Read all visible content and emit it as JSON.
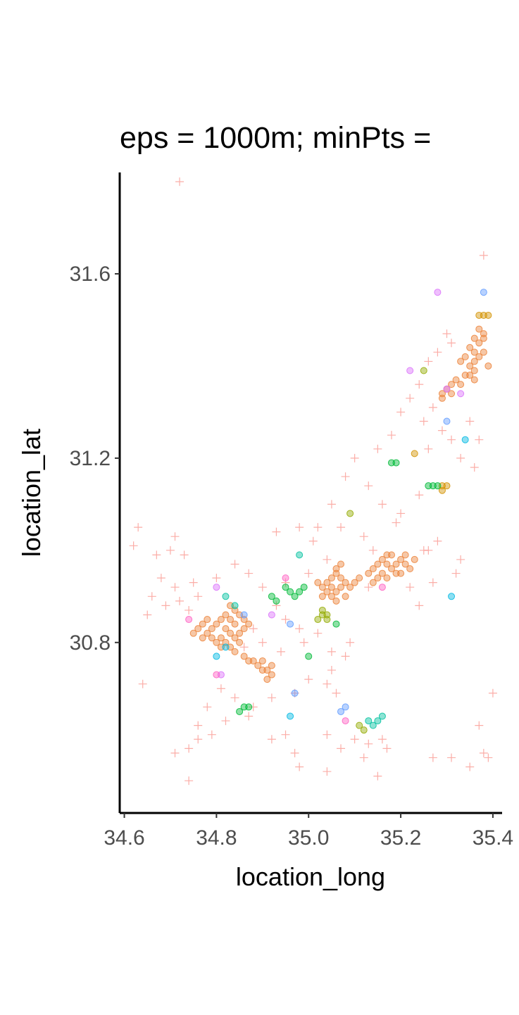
{
  "chart_data": {
    "type": "scatter",
    "title": "eps = 1000m; minPts = ",
    "xlabel": "location_long",
    "ylabel": "location_lat",
    "xlim": [
      34.59,
      35.42
    ],
    "ylim": [
      30.43,
      31.82
    ],
    "xticks": [
      34.6,
      34.8,
      35.0,
      35.2,
      35.4
    ],
    "xtick_labels": [
      "34.6",
      "34.8",
      "35.0",
      "35.2",
      "35.4"
    ],
    "yticks": [
      30.8,
      31.2,
      31.6
    ],
    "ytick_labels": [
      "30.8",
      "31.2",
      "31.6"
    ],
    "grid": false,
    "legend": "none",
    "noise": {
      "color": "#F8766D",
      "marker": "plus",
      "points": [
        [
          34.72,
          31.8
        ],
        [
          35.38,
          31.64
        ],
        [
          35.3,
          31.47
        ],
        [
          35.28,
          31.43
        ],
        [
          35.31,
          31.45
        ],
        [
          35.26,
          31.41
        ],
        [
          35.24,
          31.36
        ],
        [
          35.22,
          31.33
        ],
        [
          35.27,
          31.31
        ],
        [
          35.25,
          31.28
        ],
        [
          35.29,
          31.26
        ],
        [
          35.31,
          31.24
        ],
        [
          35.26,
          31.22
        ],
        [
          35.33,
          31.2
        ],
        [
          35.35,
          31.28
        ],
        [
          35.37,
          31.24
        ],
        [
          35.2,
          31.3
        ],
        [
          35.18,
          31.25
        ],
        [
          35.15,
          31.22
        ],
        [
          35.1,
          31.2
        ],
        [
          35.08,
          31.16
        ],
        [
          35.13,
          31.14
        ],
        [
          35.05,
          31.1
        ],
        [
          35.16,
          31.1
        ],
        [
          35.2,
          31.08
        ],
        [
          35.24,
          31.12
        ],
        [
          35.19,
          31.06
        ],
        [
          35.07,
          31.05
        ],
        [
          35.02,
          31.05
        ],
        [
          34.98,
          31.05
        ],
        [
          34.93,
          31.04
        ],
        [
          35.01,
          31.02
        ],
        [
          35.12,
          31.03
        ],
        [
          35.14,
          31.0
        ],
        [
          35.25,
          31.0
        ],
        [
          35.28,
          31.02
        ],
        [
          35.33,
          30.98
        ],
        [
          35.32,
          30.95
        ],
        [
          35.27,
          30.93
        ],
        [
          35.22,
          30.92
        ],
        [
          35.13,
          30.92
        ],
        [
          35.04,
          30.98
        ],
        [
          35.0,
          30.95
        ],
        [
          34.95,
          30.93
        ],
        [
          34.9,
          30.92
        ],
        [
          34.87,
          30.95
        ],
        [
          34.84,
          30.97
        ],
        [
          34.8,
          30.94
        ],
        [
          34.75,
          30.93
        ],
        [
          34.71,
          30.92
        ],
        [
          34.7,
          31.0
        ],
        [
          34.73,
          30.99
        ],
        [
          34.67,
          30.99
        ],
        [
          34.71,
          31.03
        ],
        [
          34.63,
          31.05
        ],
        [
          34.62,
          31.01
        ],
        [
          34.68,
          30.94
        ],
        [
          34.66,
          30.9
        ],
        [
          34.69,
          30.88
        ],
        [
          34.72,
          30.89
        ],
        [
          34.74,
          30.87
        ],
        [
          34.76,
          30.9
        ],
        [
          34.65,
          30.86
        ],
        [
          34.93,
          30.88
        ],
        [
          34.95,
          30.85
        ],
        [
          34.98,
          30.83
        ],
        [
          35.02,
          30.82
        ],
        [
          34.99,
          30.8
        ],
        [
          34.94,
          30.78
        ],
        [
          34.9,
          30.8
        ],
        [
          34.88,
          30.83
        ],
        [
          34.86,
          30.79
        ],
        [
          35.05,
          30.78
        ],
        [
          35.09,
          30.8
        ],
        [
          35.08,
          30.77
        ],
        [
          35.05,
          30.74
        ],
        [
          35.0,
          30.72
        ],
        [
          35.04,
          30.71
        ],
        [
          35.06,
          30.69
        ],
        [
          34.97,
          30.69
        ],
        [
          34.92,
          30.68
        ],
        [
          34.88,
          30.66
        ],
        [
          34.84,
          30.68
        ],
        [
          34.81,
          30.7
        ],
        [
          34.78,
          30.66
        ],
        [
          34.76,
          30.62
        ],
        [
          34.79,
          30.6
        ],
        [
          34.74,
          30.57
        ],
        [
          34.71,
          30.56
        ],
        [
          34.76,
          30.59
        ],
        [
          34.82,
          30.63
        ],
        [
          34.87,
          30.64
        ],
        [
          34.92,
          30.59
        ],
        [
          34.95,
          30.6
        ],
        [
          34.97,
          30.56
        ],
        [
          35.04,
          30.6
        ],
        [
          35.07,
          30.57
        ],
        [
          35.1,
          30.59
        ],
        [
          35.13,
          30.58
        ],
        [
          35.16,
          30.59
        ],
        [
          35.12,
          30.55
        ],
        [
          35.17,
          30.57
        ],
        [
          34.98,
          30.53
        ],
        [
          35.04,
          30.52
        ],
        [
          35.15,
          30.51
        ],
        [
          34.64,
          30.71
        ],
        [
          34.74,
          30.5
        ],
        [
          35.27,
          30.55
        ],
        [
          35.35,
          30.53
        ],
        [
          35.37,
          30.62
        ],
        [
          35.38,
          30.56
        ],
        [
          35.39,
          30.55
        ],
        [
          35.4,
          30.69
        ],
        [
          35.31,
          30.55
        ],
        [
          35.26,
          31.0
        ],
        [
          35.24,
          30.88
        ],
        [
          35.36,
          31.18
        ]
      ]
    },
    "clusters": [
      {
        "color": "#EC8239",
        "points": [
          [
            34.8,
            30.84
          ],
          [
            34.79,
            30.83
          ],
          [
            34.78,
            30.82
          ],
          [
            34.77,
            30.84
          ],
          [
            34.76,
            30.83
          ],
          [
            34.75,
            30.82
          ],
          [
            34.81,
            30.85
          ],
          [
            34.82,
            30.86
          ],
          [
            34.83,
            30.85
          ],
          [
            34.84,
            30.84
          ],
          [
            34.82,
            30.83
          ],
          [
            34.81,
            30.81
          ],
          [
            34.83,
            30.82
          ],
          [
            34.84,
            30.81
          ],
          [
            34.85,
            30.8
          ],
          [
            34.83,
            30.79
          ],
          [
            34.82,
            30.8
          ],
          [
            34.84,
            30.78
          ],
          [
            34.86,
            30.77
          ],
          [
            34.87,
            30.76
          ],
          [
            34.88,
            30.76
          ],
          [
            34.89,
            30.75
          ],
          [
            34.9,
            30.74
          ],
          [
            34.91,
            30.74
          ],
          [
            34.92,
            30.73
          ],
          [
            34.91,
            30.72
          ],
          [
            34.9,
            30.76
          ],
          [
            34.92,
            30.75
          ],
          [
            34.85,
            30.86
          ],
          [
            34.86,
            30.85
          ],
          [
            34.84,
            30.87
          ],
          [
            34.8,
            30.8
          ],
          [
            34.79,
            30.81
          ],
          [
            34.81,
            30.79
          ],
          [
            34.85,
            30.82
          ],
          [
            34.86,
            30.83
          ],
          [
            34.87,
            30.84
          ],
          [
            34.83,
            30.88
          ],
          [
            34.78,
            30.85
          ],
          [
            34.77,
            30.81
          ],
          [
            35.02,
            30.93
          ],
          [
            35.03,
            30.92
          ],
          [
            35.04,
            30.93
          ],
          [
            35.05,
            30.92
          ],
          [
            35.06,
            30.91
          ],
          [
            35.07,
            30.92
          ],
          [
            35.08,
            30.93
          ],
          [
            35.09,
            30.92
          ],
          [
            35.05,
            30.94
          ],
          [
            35.06,
            30.95
          ],
          [
            35.07,
            30.94
          ],
          [
            35.05,
            30.9
          ],
          [
            35.04,
            30.91
          ],
          [
            35.06,
            30.89
          ],
          [
            35.08,
            30.9
          ],
          [
            35.1,
            30.93
          ],
          [
            35.11,
            30.94
          ],
          [
            35.06,
            30.96
          ],
          [
            35.07,
            30.97
          ],
          [
            35.03,
            30.9
          ],
          [
            35.13,
            30.95
          ],
          [
            35.14,
            30.96
          ],
          [
            35.15,
            30.97
          ],
          [
            35.16,
            30.98
          ],
          [
            35.17,
            30.97
          ],
          [
            35.18,
            30.96
          ],
          [
            35.19,
            30.97
          ],
          [
            35.2,
            30.98
          ],
          [
            35.21,
            30.97
          ],
          [
            35.22,
            30.96
          ],
          [
            35.19,
            30.95
          ],
          [
            35.17,
            30.99
          ],
          [
            35.16,
            30.95
          ],
          [
            35.18,
            30.99
          ],
          [
            35.2,
            30.95
          ],
          [
            35.15,
            30.94
          ],
          [
            35.21,
            30.99
          ],
          [
            35.23,
            30.98
          ],
          [
            35.14,
            30.93
          ],
          [
            35.17,
            30.94
          ],
          [
            35.29,
            31.34
          ],
          [
            35.3,
            31.35
          ],
          [
            35.31,
            31.36
          ],
          [
            35.32,
            31.37
          ],
          [
            35.33,
            31.36
          ],
          [
            35.31,
            31.34
          ],
          [
            35.29,
            31.33
          ],
          [
            35.34,
            31.38
          ],
          [
            35.35,
            31.4
          ],
          [
            35.36,
            31.41
          ],
          [
            35.37,
            31.42
          ],
          [
            35.36,
            31.43
          ],
          [
            35.35,
            31.44
          ],
          [
            35.37,
            31.45
          ],
          [
            35.38,
            31.46
          ],
          [
            35.36,
            31.46
          ],
          [
            35.34,
            31.42
          ],
          [
            35.33,
            31.41
          ],
          [
            35.35,
            31.38
          ],
          [
            35.36,
            31.39
          ],
          [
            35.37,
            31.48
          ],
          [
            35.38,
            31.47
          ],
          [
            35.39,
            31.4
          ],
          [
            35.36,
            31.37
          ],
          [
            35.38,
            31.43
          ]
        ]
      },
      {
        "color": "#D39200",
        "points": [
          [
            35.38,
            31.51
          ],
          [
            35.37,
            31.51
          ],
          [
            35.39,
            31.51
          ],
          [
            35.29,
            31.14
          ],
          [
            35.3,
            31.14
          ],
          [
            35.29,
            31.13
          ],
          [
            35.23,
            31.21
          ]
        ]
      },
      {
        "color": "#93AA00",
        "points": [
          [
            35.03,
            30.86
          ],
          [
            35.04,
            30.86
          ],
          [
            35.04,
            30.85
          ],
          [
            35.03,
            30.87
          ],
          [
            35.02,
            30.85
          ],
          [
            35.09,
            31.08
          ],
          [
            35.25,
            31.39
          ],
          [
            35.12,
            30.61
          ],
          [
            35.11,
            30.62
          ]
        ]
      },
      {
        "color": "#00BA38",
        "points": [
          [
            34.86,
            30.66
          ],
          [
            34.85,
            30.65
          ],
          [
            34.87,
            30.66
          ],
          [
            35.0,
            30.77
          ],
          [
            34.96,
            30.91
          ],
          [
            34.97,
            30.9
          ],
          [
            34.98,
            30.91
          ],
          [
            34.95,
            30.92
          ],
          [
            34.92,
            30.9
          ],
          [
            34.93,
            30.89
          ],
          [
            34.99,
            30.92
          ],
          [
            35.06,
            30.84
          ],
          [
            35.27,
            31.14
          ],
          [
            35.28,
            31.14
          ],
          [
            35.26,
            31.14
          ],
          [
            35.19,
            31.19
          ],
          [
            35.18,
            31.19
          ]
        ]
      },
      {
        "color": "#00C19F",
        "points": [
          [
            34.84,
            30.88
          ],
          [
            34.82,
            30.9
          ],
          [
            34.98,
            30.99
          ],
          [
            35.14,
            30.62
          ],
          [
            35.13,
            30.63
          ],
          [
            35.16,
            30.64
          ],
          [
            35.15,
            30.63
          ]
        ]
      },
      {
        "color": "#00B9E3",
        "points": [
          [
            34.82,
            30.79
          ],
          [
            34.8,
            30.77
          ],
          [
            35.31,
            30.9
          ],
          [
            35.34,
            31.24
          ],
          [
            34.96,
            30.64
          ]
        ]
      },
      {
        "color": "#619CFF",
        "points": [
          [
            34.86,
            30.86
          ],
          [
            34.96,
            30.84
          ],
          [
            35.07,
            30.65
          ],
          [
            35.08,
            30.66
          ],
          [
            34.97,
            30.69
          ],
          [
            35.38,
            31.56
          ],
          [
            35.3,
            31.28
          ]
        ]
      },
      {
        "color": "#DB72FB",
        "points": [
          [
            34.8,
            30.92
          ],
          [
            34.81,
            30.73
          ],
          [
            34.92,
            30.86
          ],
          [
            35.28,
            31.56
          ],
          [
            35.3,
            31.35
          ],
          [
            35.33,
            31.34
          ],
          [
            35.22,
            31.39
          ]
        ]
      },
      {
        "color": "#FF61C3",
        "points": [
          [
            34.95,
            30.94
          ],
          [
            34.8,
            30.73
          ],
          [
            34.74,
            30.85
          ],
          [
            35.08,
            30.63
          ],
          [
            35.16,
            30.92
          ]
        ]
      }
    ]
  }
}
